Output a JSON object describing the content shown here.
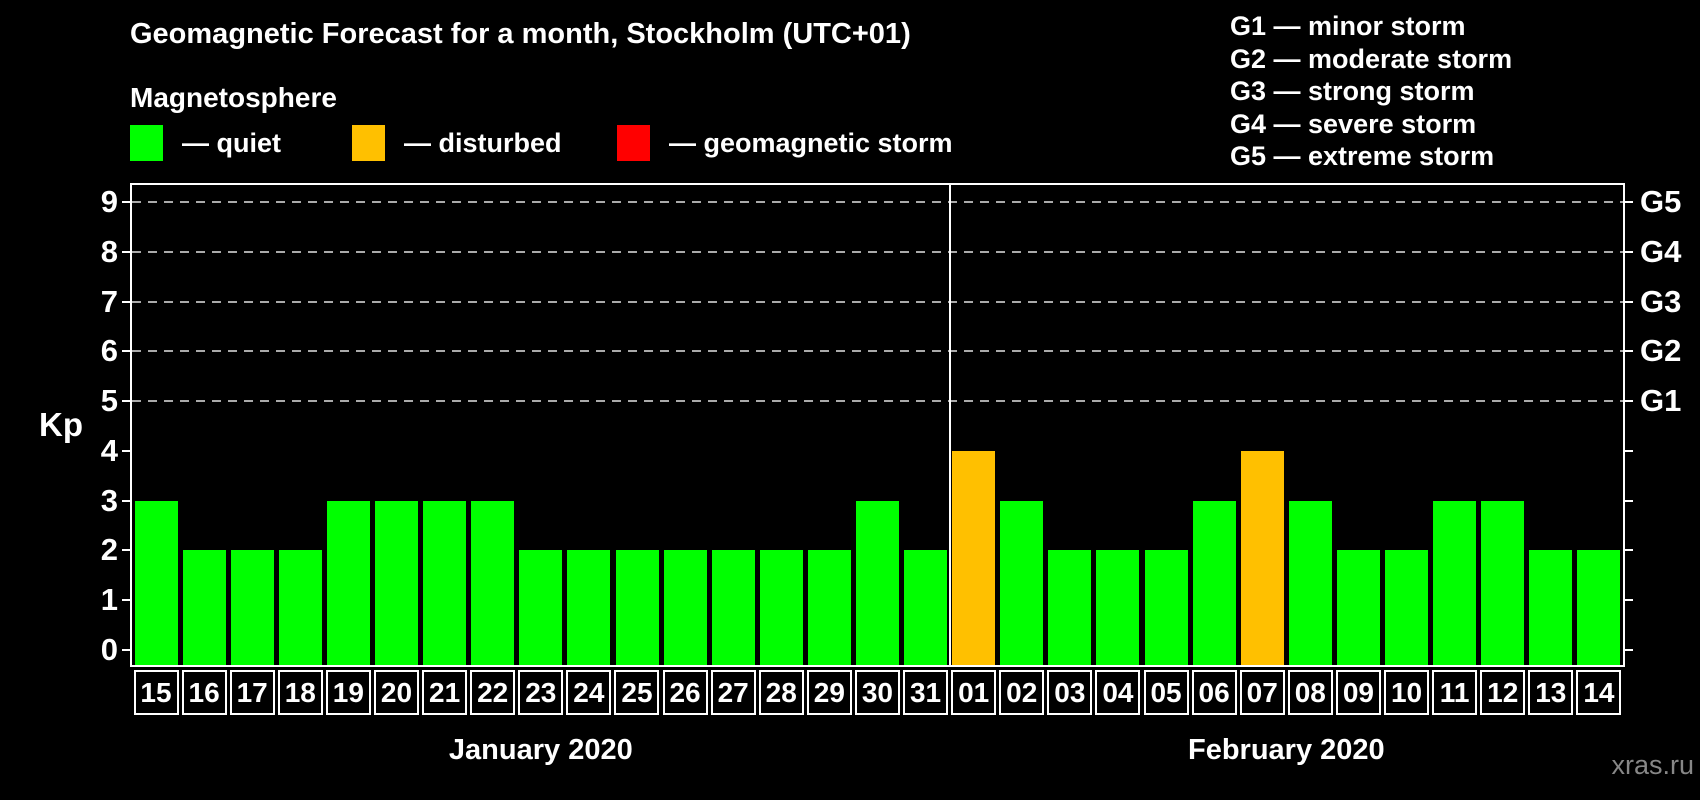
{
  "title": "Geomagnetic Forecast for a month, Stockholm (UTC+01)",
  "subtitle": "Magnetosphere",
  "legend": {
    "items": [
      {
        "name": "quiet",
        "label": "— quiet",
        "color": "#00ff00"
      },
      {
        "name": "disturbed",
        "label": "— disturbed",
        "color": "#ffc000"
      },
      {
        "name": "geomagnetic-storm",
        "label": "— geomagnetic storm",
        "color": "#ff0000"
      }
    ]
  },
  "g_scale_legend": [
    "G1 — minor storm",
    "G2 — moderate storm",
    "G3 — strong storm",
    "G4 — severe storm",
    "G5 — extreme storm"
  ],
  "watermark": "xras.ru",
  "chart_data": {
    "type": "bar",
    "title": "Geomagnetic Forecast for a month, Stockholm (UTC+01)",
    "ylabel": "Kp",
    "ylim": [
      0,
      9
    ],
    "yticks": [
      0,
      1,
      2,
      3,
      4,
      5,
      6,
      7,
      8,
      9
    ],
    "gridlines_at_kp": [
      5,
      6,
      7,
      8,
      9
    ],
    "grid_color": "#aaaaaa",
    "right_axis_ticks": [
      {
        "label": "G1",
        "kp": 5
      },
      {
        "label": "G2",
        "kp": 6
      },
      {
        "label": "G3",
        "kp": 7
      },
      {
        "label": "G4",
        "kp": 8
      },
      {
        "label": "G5",
        "kp": 9
      }
    ],
    "categories": [
      "15",
      "16",
      "17",
      "18",
      "19",
      "20",
      "21",
      "22",
      "23",
      "24",
      "25",
      "26",
      "27",
      "28",
      "29",
      "30",
      "31",
      "01",
      "02",
      "03",
      "04",
      "05",
      "06",
      "07",
      "08",
      "09",
      "10",
      "11",
      "12",
      "13",
      "14"
    ],
    "values": [
      3,
      2,
      2,
      2,
      3,
      3,
      3,
      3,
      2,
      2,
      2,
      2,
      2,
      2,
      2,
      3,
      2,
      4,
      3,
      2,
      2,
      2,
      3,
      4,
      3,
      2,
      2,
      3,
      3,
      2,
      2
    ],
    "months": [
      {
        "label": "January 2020",
        "start_index": 0,
        "day_count": 17
      },
      {
        "label": "February 2020",
        "start_index": 17,
        "day_count": 14
      }
    ],
    "colors": {
      "quiet": "#00ff00",
      "disturbed": "#ffc000",
      "storm": "#ff0000"
    },
    "color_rule": {
      "disturbed_min_kp": 4,
      "storm_min_kp": 5
    }
  }
}
